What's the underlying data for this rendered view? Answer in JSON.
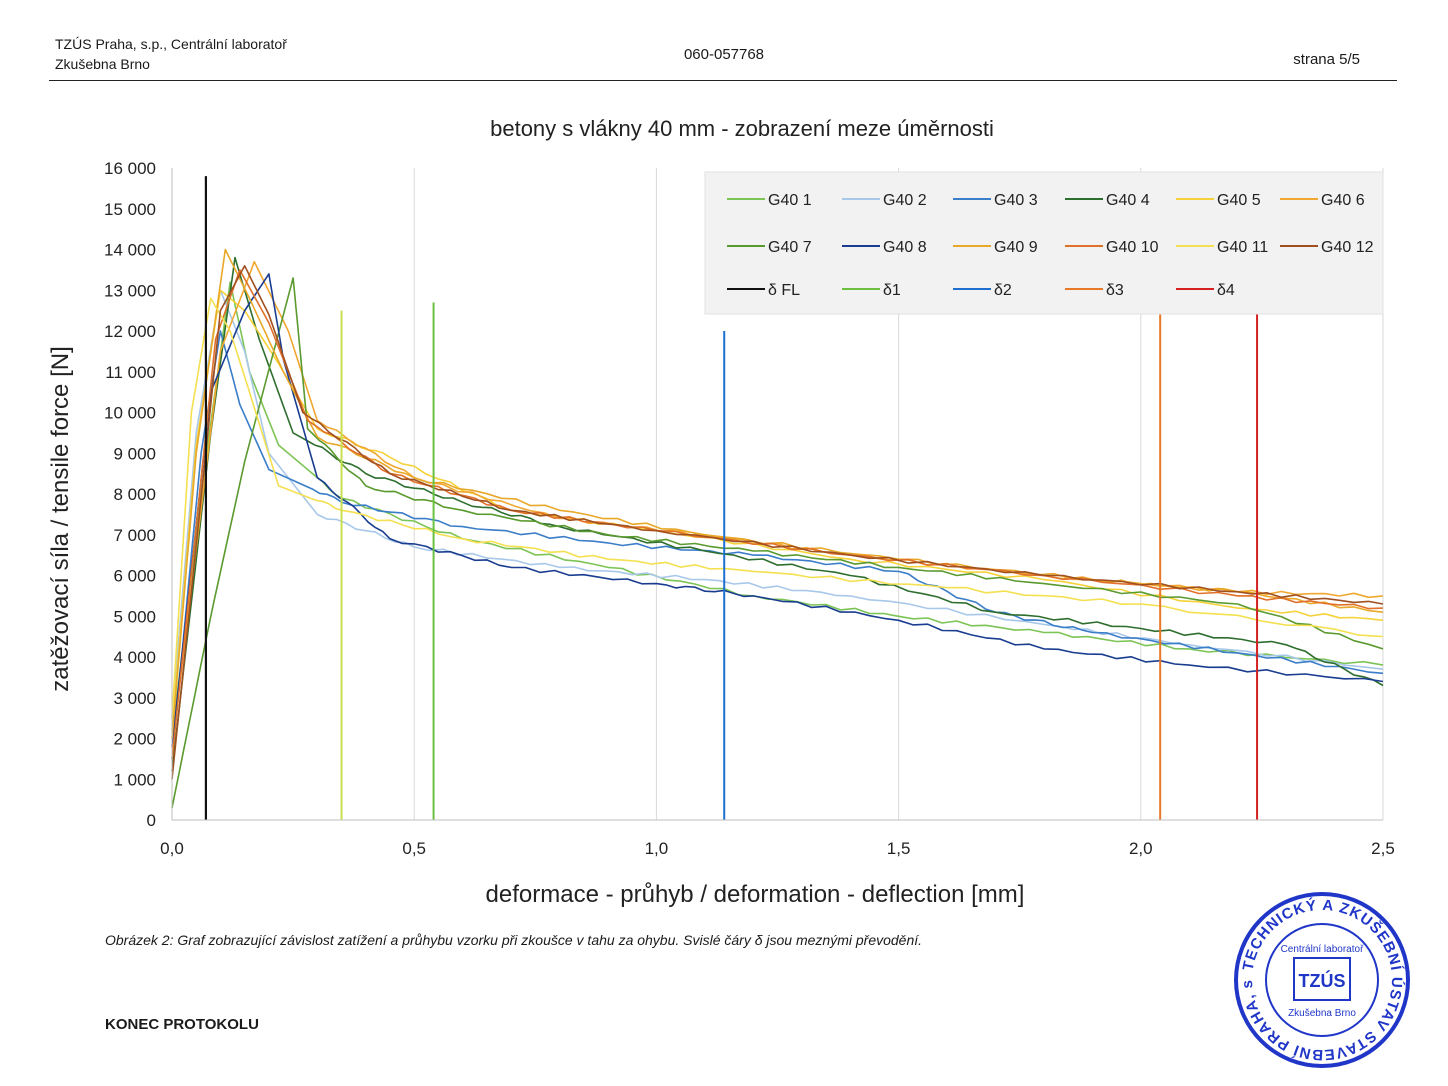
{
  "header": {
    "org_line1": "TZÚS Praha, s.p., Centrální laboratoř",
    "org_line2": "Zkušebna Brno",
    "protocol_number": "060-057768",
    "page": "strana 5/5"
  },
  "caption": "Obrázek 2: Graf zobrazující závislost zatížení a průhybu vzorku při zkoušce v tahu za ohybu. Svislé čáry δ jsou meznými převodění.",
  "footer": "KONEC PROTOKOLU",
  "stamp": {
    "ring_text": "TECHNICKÝ A ZKUŠEBNÍ ÚSTAV STAVEBNÍ PRAHA, s.p.",
    "inner_top": "Centrální laboratoř",
    "inner_bottom": "Zkušebna Brno",
    "logo": "TZÚS",
    "color": "#2036c8"
  },
  "chart_data": {
    "type": "line",
    "title": "betony s vlákny 40 mm - zobrazení meze úměrnosti",
    "xlabel": "deformace - průhyb / deformation - deflection [mm]",
    "ylabel": "zatěžovací síla / tensile force [N]",
    "xlim": [
      0,
      2.5
    ],
    "ylim": [
      0,
      16000
    ],
    "x_ticks": [
      "0,0",
      "0,5",
      "1,0",
      "1,5",
      "2,0",
      "2,5"
    ],
    "y_ticks": [
      "0",
      "1 000",
      "2 000",
      "3 000",
      "4 000",
      "5 000",
      "6 000",
      "7 000",
      "8 000",
      "9 000",
      "10 000",
      "11 000",
      "12 000",
      "13 000",
      "14 000",
      "15 000",
      "16 000"
    ],
    "grid": "vertical",
    "legend_position": "top-right",
    "series": [
      {
        "name": "G40 1",
        "color": "#7cc455",
        "points": [
          [
            0,
            2000
          ],
          [
            0.06,
            8000
          ],
          [
            0.12,
            13200
          ],
          [
            0.16,
            11000
          ],
          [
            0.22,
            9200
          ],
          [
            0.35,
            7900
          ],
          [
            0.6,
            6900
          ],
          [
            0.9,
            6200
          ],
          [
            1.2,
            5500
          ],
          [
            1.5,
            5000
          ],
          [
            1.8,
            4600
          ],
          [
            2.1,
            4200
          ],
          [
            2.5,
            3800
          ]
        ]
      },
      {
        "name": "G40 2",
        "color": "#a8c8ea",
        "points": [
          [
            0,
            2500
          ],
          [
            0.05,
            9500
          ],
          [
            0.1,
            13000
          ],
          [
            0.15,
            11500
          ],
          [
            0.2,
            9000
          ],
          [
            0.3,
            7500
          ],
          [
            0.5,
            6700
          ],
          [
            0.8,
            6200
          ],
          [
            1.1,
            5900
          ],
          [
            1.4,
            5500
          ],
          [
            1.8,
            4800
          ],
          [
            2.1,
            4300
          ],
          [
            2.5,
            3700
          ]
        ]
      },
      {
        "name": "G40 3",
        "color": "#3a7dc8",
        "points": [
          [
            0,
            1500
          ],
          [
            0.06,
            9000
          ],
          [
            0.1,
            12000
          ],
          [
            0.14,
            10200
          ],
          [
            0.2,
            8600
          ],
          [
            0.35,
            7800
          ],
          [
            0.6,
            7200
          ],
          [
            0.9,
            6800
          ],
          [
            1.2,
            6500
          ],
          [
            1.5,
            6100
          ],
          [
            1.7,
            5100
          ],
          [
            1.9,
            4600
          ],
          [
            2.2,
            4100
          ],
          [
            2.5,
            3600
          ]
        ]
      },
      {
        "name": "G40 4",
        "color": "#2e6e2e",
        "points": [
          [
            0,
            1200
          ],
          [
            0.08,
            9500
          ],
          [
            0.13,
            13800
          ],
          [
            0.18,
            11800
          ],
          [
            0.25,
            9500
          ],
          [
            0.4,
            8500
          ],
          [
            0.6,
            7800
          ],
          [
            0.8,
            7200
          ],
          [
            1.1,
            6600
          ],
          [
            1.4,
            6000
          ],
          [
            1.7,
            5100
          ],
          [
            2.0,
            4700
          ],
          [
            2.3,
            4300
          ],
          [
            2.5,
            3300
          ]
        ]
      },
      {
        "name": "G40 5",
        "color": "#f5d23a",
        "points": [
          [
            0,
            2200
          ],
          [
            0.05,
            9200
          ],
          [
            0.1,
            13000
          ],
          [
            0.15,
            12500
          ],
          [
            0.22,
            11200
          ],
          [
            0.3,
            9600
          ],
          [
            0.45,
            8900
          ],
          [
            0.7,
            7600
          ],
          [
            1.0,
            7100
          ],
          [
            1.4,
            6400
          ],
          [
            1.8,
            5900
          ],
          [
            2.2,
            5200
          ],
          [
            2.5,
            4900
          ]
        ]
      },
      {
        "name": "G40 6",
        "color": "#f0a830",
        "points": [
          [
            0,
            1800
          ],
          [
            0.1,
            11500
          ],
          [
            0.17,
            13700
          ],
          [
            0.24,
            12000
          ],
          [
            0.3,
            9800
          ],
          [
            0.5,
            8400
          ],
          [
            0.8,
            7400
          ],
          [
            1.1,
            7000
          ],
          [
            1.4,
            6500
          ],
          [
            1.8,
            6000
          ],
          [
            2.2,
            5600
          ],
          [
            2.5,
            5500
          ]
        ]
      },
      {
        "name": "G40 7",
        "color": "#5a9a2e",
        "points": [
          [
            0,
            300
          ],
          [
            0.08,
            5000
          ],
          [
            0.15,
            8800
          ],
          [
            0.21,
            11500
          ],
          [
            0.25,
            13300
          ],
          [
            0.28,
            9600
          ],
          [
            0.4,
            8200
          ],
          [
            0.6,
            7600
          ],
          [
            0.9,
            7000
          ],
          [
            1.2,
            6600
          ],
          [
            1.5,
            6200
          ],
          [
            1.8,
            5800
          ],
          [
            2.2,
            5300
          ],
          [
            2.5,
            4200
          ]
        ]
      },
      {
        "name": "G40 8",
        "color": "#1a3d90",
        "points": [
          [
            0,
            1800
          ],
          [
            0.08,
            10500
          ],
          [
            0.15,
            12500
          ],
          [
            0.2,
            13400
          ],
          [
            0.23,
            11300
          ],
          [
            0.3,
            8400
          ],
          [
            0.45,
            6900
          ],
          [
            0.7,
            6200
          ],
          [
            1.0,
            5800
          ],
          [
            1.2,
            5500
          ],
          [
            1.5,
            4900
          ],
          [
            1.8,
            4200
          ],
          [
            2.1,
            3800
          ],
          [
            2.5,
            3400
          ]
        ]
      },
      {
        "name": "G40 9",
        "color": "#e8a828",
        "points": [
          [
            0,
            2000
          ],
          [
            0.05,
            9000
          ],
          [
            0.11,
            14000
          ],
          [
            0.16,
            12800
          ],
          [
            0.23,
            11000
          ],
          [
            0.3,
            9400
          ],
          [
            0.5,
            8400
          ],
          [
            0.8,
            7600
          ],
          [
            1.1,
            7000
          ],
          [
            1.5,
            6400
          ],
          [
            1.9,
            5900
          ],
          [
            2.2,
            5600
          ],
          [
            2.5,
            5100
          ]
        ]
      },
      {
        "name": "G40 10",
        "color": "#e0702a",
        "points": [
          [
            0,
            1500
          ],
          [
            0.09,
            11800
          ],
          [
            0.14,
            13500
          ],
          [
            0.2,
            12200
          ],
          [
            0.28,
            9800
          ],
          [
            0.45,
            8500
          ],
          [
            0.7,
            7600
          ],
          [
            1.0,
            7100
          ],
          [
            1.4,
            6500
          ],
          [
            1.8,
            6000
          ],
          [
            2.2,
            5500
          ],
          [
            2.5,
            5200
          ]
        ]
      },
      {
        "name": "G40 11",
        "color": "#f4e050",
        "points": [
          [
            0,
            2500
          ],
          [
            0.04,
            10000
          ],
          [
            0.08,
            12800
          ],
          [
            0.12,
            12000
          ],
          [
            0.16,
            10500
          ],
          [
            0.22,
            8200
          ],
          [
            0.35,
            7600
          ],
          [
            0.6,
            6900
          ],
          [
            0.9,
            6400
          ],
          [
            1.2,
            6100
          ],
          [
            1.6,
            5700
          ],
          [
            2.0,
            5300
          ],
          [
            2.5,
            4500
          ]
        ]
      },
      {
        "name": "G40 12",
        "color": "#a05020",
        "points": [
          [
            0,
            1000
          ],
          [
            0.1,
            12500
          ],
          [
            0.15,
            13600
          ],
          [
            0.2,
            12400
          ],
          [
            0.27,
            10000
          ],
          [
            0.45,
            8500
          ],
          [
            0.7,
            7600
          ],
          [
            1.0,
            7100
          ],
          [
            1.4,
            6500
          ],
          [
            1.8,
            6000
          ],
          [
            2.2,
            5600
          ],
          [
            2.5,
            5300
          ]
        ]
      }
    ],
    "lines": [
      {
        "name": "δ FL",
        "color": "#111111",
        "x": 0.07,
        "y": [
          0,
          15800
        ]
      },
      {
        "name": "δ1",
        "color": "#6cc040",
        "x": 0.54,
        "y": [
          0,
          12700
        ]
      },
      {
        "name": "δ2",
        "color": "#1f6fd0",
        "x": 1.14,
        "y": [
          0,
          12000
        ]
      },
      {
        "name": "δ3",
        "color": "#e8782a",
        "x": 2.04,
        "y": [
          0,
          12500
        ]
      },
      {
        "name": "δ4",
        "color": "#d42020",
        "x": 2.24,
        "y": [
          0,
          12500
        ]
      }
    ],
    "unlabeled_lines": [
      {
        "color": "#c8e050",
        "x": 0.35,
        "y": [
          0,
          12500
        ]
      }
    ]
  }
}
